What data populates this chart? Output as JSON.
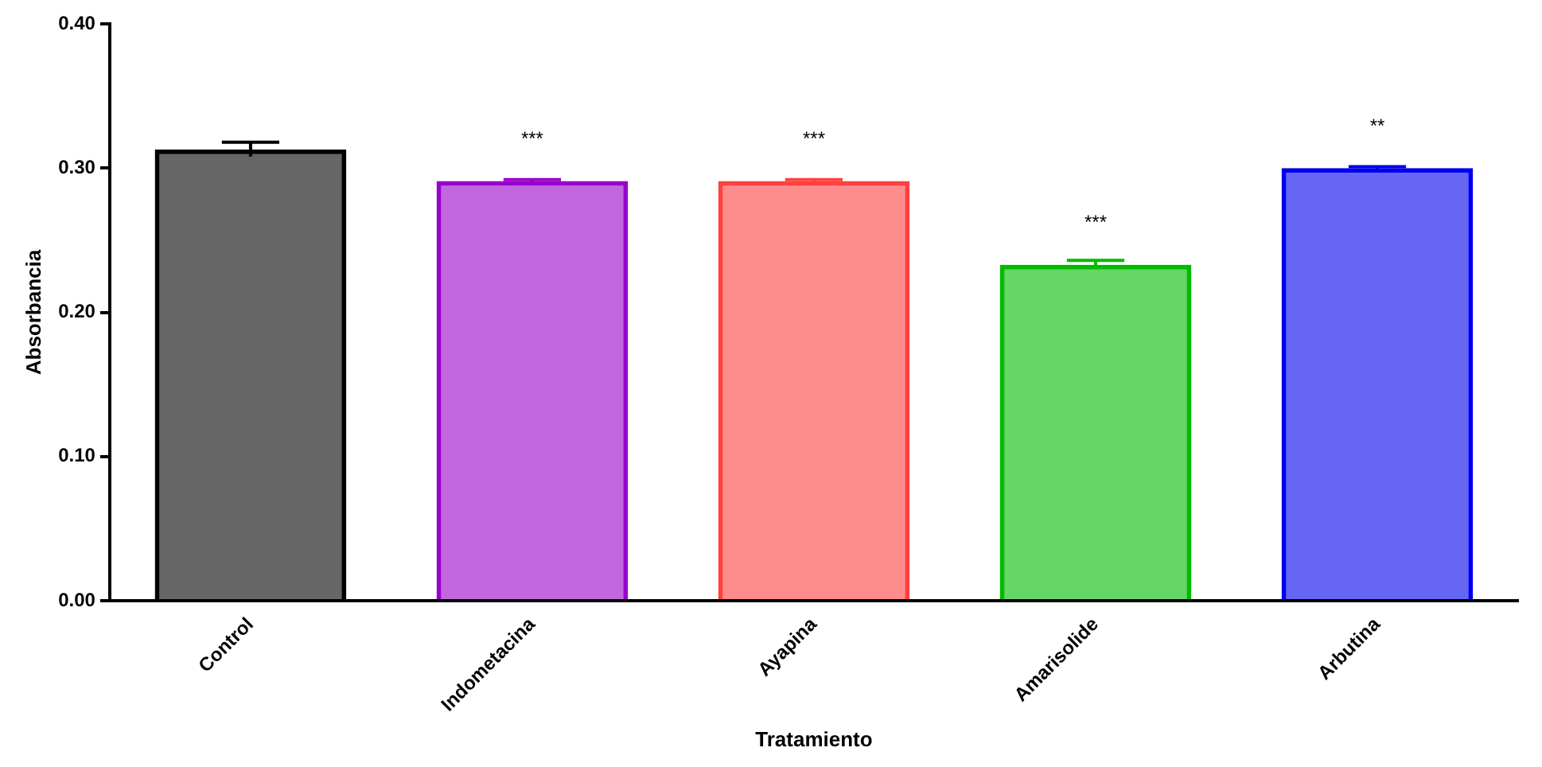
{
  "chart_data": {
    "type": "bar",
    "xlabel": "Tratamiento",
    "ylabel": "Absorbancia",
    "categories": [
      "Control",
      "Indometacina",
      "Ayapina",
      "Amarisolide",
      "Arbutina"
    ],
    "values": [
      0.313,
      0.291,
      0.291,
      0.233,
      0.3
    ],
    "errors": [
      0.005,
      0.001,
      0.001,
      0.003,
      0.001
    ],
    "colors": [
      "#000000",
      "#9900cc",
      "#ff4040",
      "#00bb00",
      "#0000ee"
    ],
    "ylim": [
      0,
      0.4
    ],
    "yticks": [
      {
        "value": 0,
        "label": "0.00"
      },
      {
        "value": 0.1,
        "label": "0.10"
      },
      {
        "value": 0.2,
        "label": "0.20"
      },
      {
        "value": 0.3,
        "label": "0.30"
      },
      {
        "value": 0.4,
        "label": "0.40"
      }
    ],
    "annotations": [
      {
        "text": "***",
        "x": "Indometacina",
        "y": 0.291
      },
      {
        "text": "***",
        "x": "Ayapina",
        "y": 0.291
      },
      {
        "text": "***",
        "x": "Amarisolide",
        "y": 0.233
      },
      {
        "text": "**",
        "x": "Arbutina",
        "y": 0.3
      }
    ],
    "grid": false,
    "legend": false
  }
}
